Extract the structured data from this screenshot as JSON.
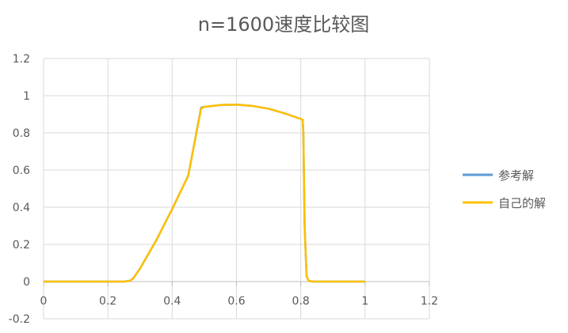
{
  "chart_data": {
    "type": "line",
    "title": "n=1600速度比较图",
    "xlabel": "",
    "ylabel": "",
    "xlim": [
      0,
      1.2
    ],
    "ylim": [
      -0.2,
      1.2
    ],
    "x_ticks": [
      0,
      0.2,
      0.4,
      0.6,
      0.8,
      1,
      1.2
    ],
    "x_tick_labels": [
      "0",
      "0.2",
      "0.4",
      "0.6",
      "0.8",
      "1",
      "1.2"
    ],
    "y_ticks": [
      -0.2,
      0,
      0.2,
      0.4,
      0.6,
      0.8,
      1,
      1.2
    ],
    "y_tick_labels": [
      "-0.2",
      "0",
      "0.2",
      "0.4",
      "0.6",
      "0.8",
      "1",
      "1.2"
    ],
    "grid": true,
    "legend_position": "right",
    "series": [
      {
        "name": "参考解",
        "color": "#5B9BD5",
        "points": [
          [
            0,
            0
          ],
          [
            0.25,
            0
          ],
          [
            0.27,
            0.005
          ],
          [
            0.28,
            0.02
          ],
          [
            0.3,
            0.07
          ],
          [
            0.35,
            0.22
          ],
          [
            0.4,
            0.39
          ],
          [
            0.45,
            0.57
          ],
          [
            0.49,
            0.935
          ],
          [
            0.5,
            0.94
          ],
          [
            0.55,
            0.95
          ],
          [
            0.6,
            0.952
          ],
          [
            0.65,
            0.945
          ],
          [
            0.7,
            0.93
          ],
          [
            0.75,
            0.905
          ],
          [
            0.8,
            0.875
          ],
          [
            0.806,
            0.87
          ],
          [
            0.808,
            0.8
          ],
          [
            0.812,
            0.3
          ],
          [
            0.818,
            0.03
          ],
          [
            0.825,
            0.003
          ],
          [
            0.84,
            0
          ],
          [
            1,
            0
          ]
        ]
      },
      {
        "name": "自己的解",
        "color": "#FFC000",
        "points": [
          [
            0,
            0
          ],
          [
            0.25,
            0
          ],
          [
            0.27,
            0.005
          ],
          [
            0.28,
            0.02
          ],
          [
            0.3,
            0.07
          ],
          [
            0.35,
            0.22
          ],
          [
            0.4,
            0.39
          ],
          [
            0.45,
            0.57
          ],
          [
            0.49,
            0.93
          ],
          [
            0.5,
            0.94
          ],
          [
            0.55,
            0.95
          ],
          [
            0.6,
            0.952
          ],
          [
            0.65,
            0.945
          ],
          [
            0.7,
            0.93
          ],
          [
            0.75,
            0.905
          ],
          [
            0.8,
            0.875
          ],
          [
            0.806,
            0.87
          ],
          [
            0.808,
            0.8
          ],
          [
            0.812,
            0.3
          ],
          [
            0.818,
            0.03
          ],
          [
            0.825,
            0.003
          ],
          [
            0.84,
            0
          ],
          [
            1,
            0
          ]
        ]
      }
    ]
  }
}
